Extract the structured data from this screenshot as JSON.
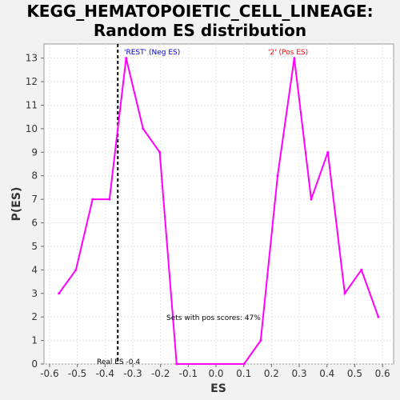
{
  "title_line1": "KEGG_HEMATOPOIETIC_CELL_LINEAGE:",
  "title_line2": "Random ES distribution",
  "chart_data": {
    "type": "line",
    "xlabel": "ES",
    "ylabel": "P(ES)",
    "xlim": [
      -0.62,
      0.64
    ],
    "ylim": [
      0,
      13.6
    ],
    "xticks": [
      "-0.6",
      "-0.5",
      "-0.4",
      "-0.3",
      "-0.2",
      "-0.1",
      "0.0",
      "0.1",
      "0.2",
      "0.3",
      "0.4",
      "0.5",
      "0.6"
    ],
    "xtick_values": [
      -0.6,
      -0.5,
      -0.4,
      -0.3,
      -0.2,
      -0.1,
      0.0,
      0.1,
      0.2,
      0.3,
      0.4,
      0.5,
      0.6
    ],
    "yticks": [
      "0",
      "1",
      "2",
      "3",
      "4",
      "5",
      "6",
      "7",
      "8",
      "9",
      "10",
      "11",
      "12",
      "13"
    ],
    "ytick_values": [
      0,
      1,
      2,
      3,
      4,
      5,
      6,
      7,
      8,
      9,
      10,
      11,
      12,
      13
    ],
    "grid": true,
    "series": [
      {
        "color": "#ff00ff",
        "x": [
          -0.566,
          -0.505,
          -0.445,
          -0.384,
          -0.324,
          -0.263,
          -0.203,
          -0.142,
          0.101,
          0.161,
          0.222,
          0.282,
          0.343,
          0.403,
          0.464,
          0.524,
          0.585
        ],
        "y": [
          3,
          4,
          7,
          7,
          13,
          10,
          9,
          0,
          0,
          1,
          8,
          13,
          7,
          9,
          3,
          4,
          2
        ]
      }
    ],
    "real_es": -0.4,
    "real_es_x": -0.354,
    "annotations": {
      "neg_label": "'REST' (Neg ES)",
      "neg_color": "#0000cc",
      "pos_label": "'2' (Pos ES)",
      "pos_color": "#ff0000",
      "pos_scores": "Sets with pos scores: 47%",
      "real_es_label": "Real ES -0.4"
    }
  }
}
